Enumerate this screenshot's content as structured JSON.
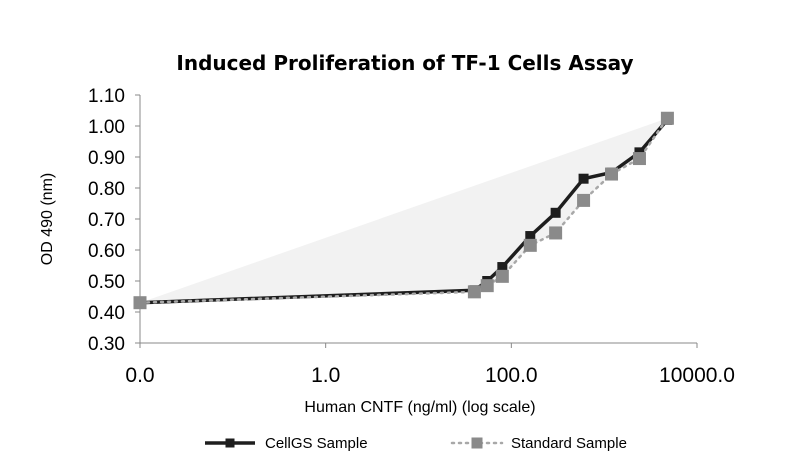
{
  "chart_data": {
    "type": "line",
    "title": "Induced Proliferation of TF-1 Cells Assay",
    "xlabel": "Human CNTF (ng/ml) (log scale)",
    "ylabel": "OD 490 (nm)",
    "x_scale": "log",
    "x_ticks": [
      {
        "value": 0.01,
        "label": "0.0"
      },
      {
        "value": 1,
        "label": "1.0"
      },
      {
        "value": 100,
        "label": "100.0"
      },
      {
        "value": 10000,
        "label": "10000.0"
      }
    ],
    "y_ticks": [
      "0.30",
      "0.40",
      "0.50",
      "0.60",
      "0.70",
      "0.80",
      "0.90",
      "1.00",
      "1.10"
    ],
    "ylim": [
      0.3,
      1.1
    ],
    "xlim": [
      0.01,
      10000
    ],
    "grid": false,
    "legend_position": "bottom",
    "series": [
      {
        "name": "CellGS Sample",
        "color": "#1e1e1e",
        "line_style": "solid",
        "x": [
          0.01,
          40,
          55,
          80,
          160,
          300,
          600,
          1200,
          2400,
          4800
        ],
        "y": [
          0.43,
          0.47,
          0.5,
          0.545,
          0.645,
          0.72,
          0.83,
          0.85,
          0.915,
          1.02
        ]
      },
      {
        "name": "Standard Sample",
        "color": "#8a8a8a",
        "line_style": "dotted",
        "x": [
          0.01,
          40,
          55,
          80,
          160,
          300,
          600,
          1200,
          2400,
          4800
        ],
        "y": [
          0.43,
          0.465,
          0.485,
          0.515,
          0.615,
          0.655,
          0.76,
          0.845,
          0.895,
          1.025
        ]
      }
    ]
  }
}
